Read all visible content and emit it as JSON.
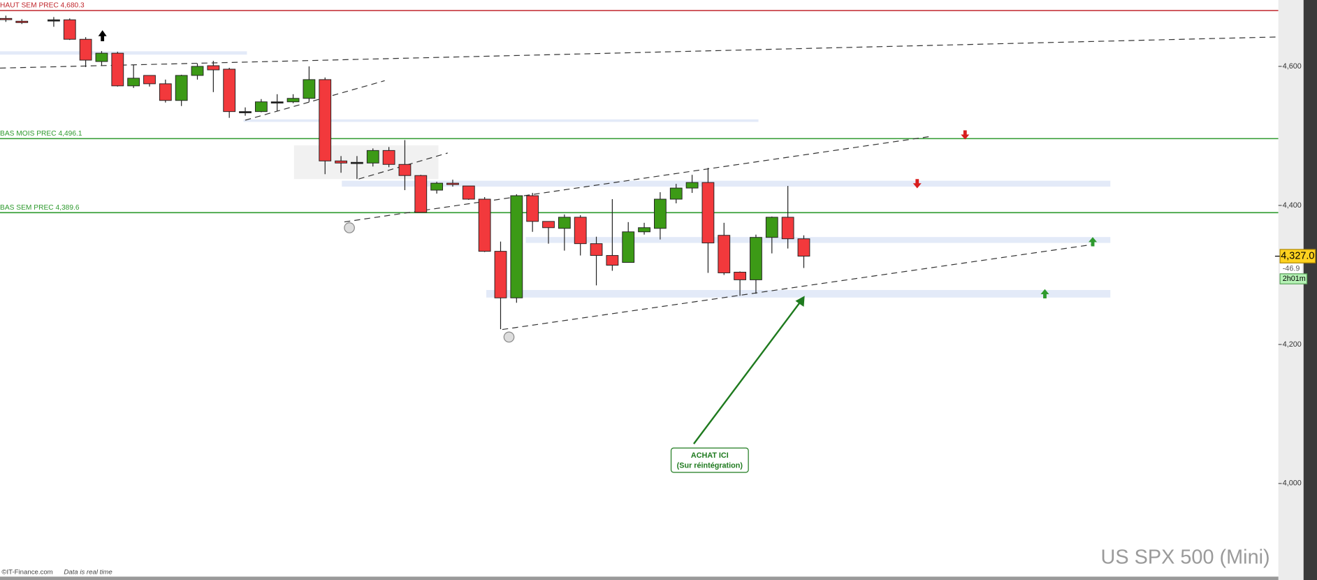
{
  "chart_data": {
    "type": "candlestick",
    "open": [
      4669,
      4665,
      null,
      4667,
      4667,
      4639,
      4607,
      4619,
      4572,
      4587,
      4575,
      4551,
      4587,
      4601,
      4596,
      4535,
      4535,
      4549,
      4549,
      4554,
      4581,
      4464,
      4462,
      4461,
      4479,
      4459,
      4443,
      4422,
      4432,
      4428,
      4409,
      4334,
      4267,
      4414,
      4377,
      4367,
      4383,
      4345,
      4328,
      4318,
      4362,
      4367,
      4409,
      4425,
      4433,
      4357,
      4304,
      4293,
      4354,
      4383,
      4352
    ],
    "high": [
      4673,
      4668,
      null,
      4671,
      4669,
      4642,
      4622,
      4621,
      4602,
      4587,
      4581,
      4588,
      4604,
      4608,
      4598,
      4541,
      4553,
      4560,
      4560,
      4600,
      4584,
      4471,
      4471,
      4482,
      4484,
      4494,
      4444,
      4434,
      4437,
      4428,
      4412,
      4348,
      4416,
      4418,
      4377,
      4387,
      4386,
      4355,
      4409,
      4376,
      4375,
      4419,
      4431,
      4444,
      4454,
      4375,
      4305,
      4358,
      4384,
      4428,
      4357
    ],
    "low": [
      4664,
      4661,
      null,
      4657,
      4638,
      4599,
      4601,
      4571,
      4569,
      4571,
      4548,
      4543,
      4581,
      4563,
      4526,
      4529,
      4534,
      4536,
      4547,
      4549,
      4445,
      4447,
      4438,
      4456,
      4455,
      4422,
      4390,
      4417,
      4427,
      4408,
      4333,
      4222,
      4260,
      4362,
      4345,
      4335,
      4328,
      4285,
      4306,
      4318,
      4358,
      4351,
      4403,
      4418,
      4303,
      4300,
      4270,
      4273,
      4331,
      4338,
      4310
    ],
    "close": [
      4668,
      4663,
      null,
      4667,
      4639,
      4609,
      4619,
      4572,
      4583,
      4575,
      4551,
      4587,
      4600,
      4595,
      4535,
      4535,
      4549,
      4549,
      4554,
      4581,
      4464,
      4461,
      4462,
      4479,
      4459,
      4443,
      4390,
      4432,
      4430,
      4409,
      4334,
      4267,
      4414,
      4377,
      4368,
      4383,
      4345,
      4328,
      4314,
      4362,
      4368,
      4409,
      4425,
      4433,
      4346,
      4303,
      4293,
      4354,
      4383,
      4352,
      4327
    ],
    "up_color": "#3c9a16",
    "down_color": "#f2393c",
    "ylim": [
      3866,
      4695.5
    ],
    "yticks": [
      {
        "value": 4000,
        "label": "4,000"
      },
      {
        "value": 4200,
        "label": "4,200"
      },
      {
        "value": 4400,
        "label": "4,400"
      },
      {
        "value": 4600,
        "label": "4,600"
      }
    ],
    "levels": [
      {
        "value": 4680.3,
        "label": "HAUT SEM PREC 4,680.3",
        "color": "#c0262c"
      },
      {
        "value": 4496.1,
        "label": "BAS MOIS PREC 4,496.1",
        "color": "#2e9a2e"
      },
      {
        "value": 4389.6,
        "label": "BAS SEM PREC 4,389.6",
        "color": "#2e9a2e"
      }
    ],
    "last_price": {
      "value": 4327.0,
      "label": "4,327.0"
    },
    "change": -46.9,
    "timer": "2h01m",
    "annotation": [
      "ACHAT ICI",
      "(Sur réintégration)"
    ],
    "watermark": "US SPX 500 (Mini)",
    "footer": [
      "©IT-Finance.com",
      "Data is real time"
    ]
  }
}
